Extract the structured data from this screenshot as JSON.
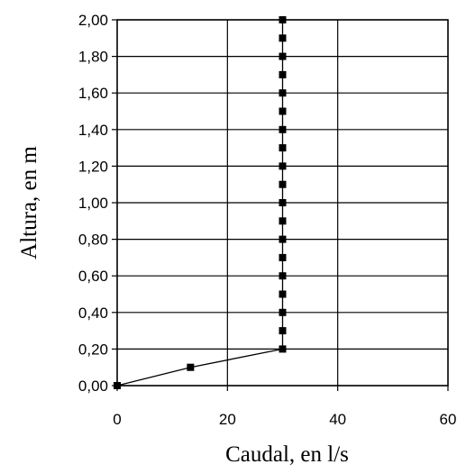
{
  "chart_data": {
    "type": "scatter",
    "xlabel": "Caudal, en l/s",
    "ylabel": "Altura, en m",
    "xlim": [
      0,
      60
    ],
    "ylim": [
      0,
      2
    ],
    "x_ticks": [
      0,
      20,
      40,
      60
    ],
    "x_tick_labels": [
      "0",
      "20",
      "40",
      "60"
    ],
    "y_ticks": [
      0,
      0.2,
      0.4,
      0.6,
      0.8,
      1.0,
      1.2,
      1.4,
      1.6,
      1.8,
      2.0
    ],
    "y_tick_labels": [
      "0,00",
      "0,20",
      "0,40",
      "0,60",
      "0,80",
      "1,00",
      "1,20",
      "1,40",
      "1,60",
      "1,80",
      "2,00"
    ],
    "grid": true,
    "series": [
      {
        "color": "#000000",
        "marker": "square",
        "points": [
          {
            "x": 0,
            "y": 0.0
          },
          {
            "x": 13.3,
            "y": 0.1
          },
          {
            "x": 30,
            "y": 0.2
          },
          {
            "x": 30,
            "y": 0.3
          },
          {
            "x": 30,
            "y": 0.4
          },
          {
            "x": 30,
            "y": 0.5
          },
          {
            "x": 30,
            "y": 0.6
          },
          {
            "x": 30,
            "y": 0.7
          },
          {
            "x": 30,
            "y": 0.8
          },
          {
            "x": 30,
            "y": 0.9
          },
          {
            "x": 30,
            "y": 1.0
          },
          {
            "x": 30,
            "y": 1.1
          },
          {
            "x": 30,
            "y": 1.2
          },
          {
            "x": 30,
            "y": 1.3
          },
          {
            "x": 30,
            "y": 1.4
          },
          {
            "x": 30,
            "y": 1.5
          },
          {
            "x": 30,
            "y": 1.6
          },
          {
            "x": 30,
            "y": 1.7
          },
          {
            "x": 30,
            "y": 1.8
          },
          {
            "x": 30,
            "y": 1.9
          },
          {
            "x": 30,
            "y": 2.0
          }
        ]
      }
    ]
  }
}
